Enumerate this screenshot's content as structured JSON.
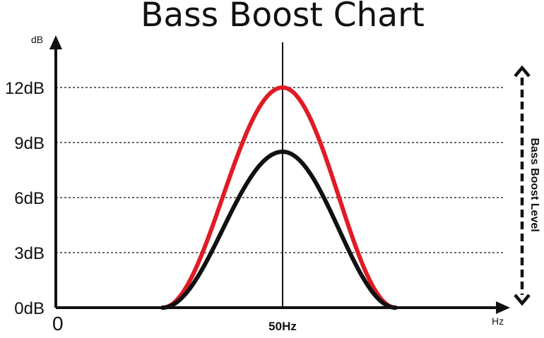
{
  "chart_data": {
    "type": "line",
    "title": "Bass Boost Chart",
    "ylabel": "dB",
    "xlabel": "Hz",
    "origin_label": "0",
    "center_label": "50Hz",
    "side_label": "Bass Boost Level",
    "y_ticks": [
      "0dB",
      "3dB",
      "6dB",
      "9dB",
      "12dB"
    ],
    "y_tick_values": [
      0,
      3,
      6,
      9,
      12
    ],
    "ylim": [
      0,
      15
    ],
    "grid": "dashed horizontal",
    "series": [
      {
        "color": "#e01b24",
        "peak_db": 12,
        "start": "flat",
        "end": "flat"
      },
      {
        "color": "#111111",
        "peak_db": 8.5,
        "start": "flat",
        "end": "flat"
      }
    ]
  }
}
